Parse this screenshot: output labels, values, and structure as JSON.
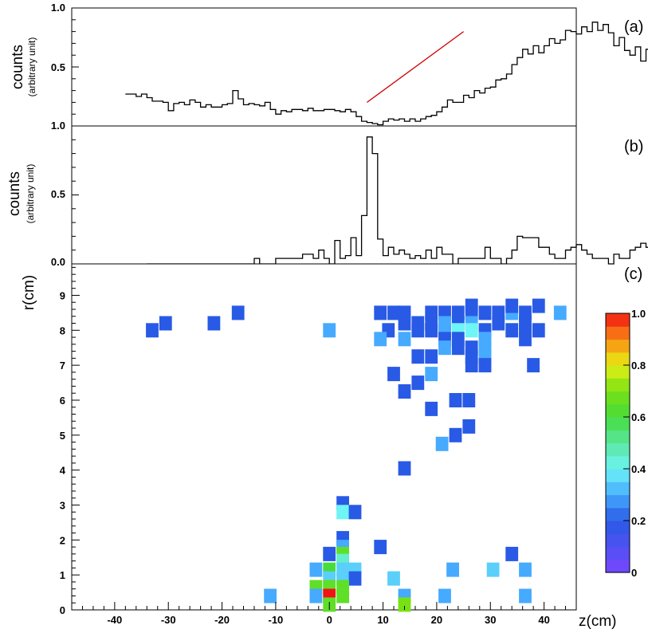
{
  "chart_data": [
    {
      "panel": "a",
      "type": "line",
      "label": "(a)",
      "ylabel": "counts",
      "ylabel_sub": "(arbitrary unit)",
      "ytick_labels": [
        "1.0",
        "0.5"
      ],
      "ylim": [
        0,
        1
      ],
      "xlim": [
        -48,
        46
      ],
      "x_start": -38,
      "bin_width": 1,
      "values": [
        0.27,
        0.27,
        0.25,
        0.27,
        0.24,
        0.21,
        0.21,
        0.2,
        0.13,
        0.19,
        0.2,
        0.18,
        0.22,
        0.2,
        0.16,
        0.18,
        0.16,
        0.16,
        0.18,
        0.19,
        0.3,
        0.23,
        0.18,
        0.19,
        0.18,
        0.17,
        0.2,
        0.14,
        0.1,
        0.13,
        0.12,
        0.14,
        0.14,
        0.13,
        0.15,
        0.13,
        0.13,
        0.14,
        0.14,
        0.13,
        0.12,
        0.14,
        0.12,
        0.08,
        0.04,
        0.03,
        0.02,
        0.01,
        0.04,
        0.06,
        0.05,
        0.06,
        0.04,
        0.06,
        0.04,
        0.06,
        0.08,
        0.09,
        0.12,
        0.16,
        0.22,
        0.2,
        0.2,
        0.26,
        0.24,
        0.3,
        0.28,
        0.32,
        0.33,
        0.39,
        0.4,
        0.44,
        0.52,
        0.58,
        0.65,
        0.61,
        0.68,
        0.62,
        0.68,
        0.74,
        0.7,
        0.73,
        0.81,
        0.8,
        0.78,
        0.84,
        0.8,
        0.88,
        0.81,
        0.86,
        0.79,
        0.68,
        0.75,
        0.64,
        0.6,
        0.67,
        0.55,
        0.65,
        0.61,
        0.6,
        0.48,
        0.51,
        0.5,
        0.45,
        0.43,
        0.53,
        0.42,
        0.45,
        0.4,
        0.4
      ],
      "fit_line": {
        "x": [
          7,
          25
        ],
        "y": [
          0.2,
          0.8
        ],
        "color": "#cc0000"
      }
    },
    {
      "panel": "b",
      "type": "line",
      "label": "(b)",
      "ylabel": "counts",
      "ylabel_sub": "(arbitrary unit)",
      "ytick_labels": [
        "1.0",
        "0.5",
        "0.0"
      ],
      "ylim": [
        0,
        1
      ],
      "xlim": [
        -48,
        46
      ],
      "x_start": -34,
      "bin_width": 1,
      "values": [
        0,
        0,
        0,
        0,
        0,
        0,
        0,
        0,
        0,
        0,
        0,
        0,
        0,
        0,
        0,
        0,
        0,
        0,
        0,
        0,
        0.04,
        0,
        0,
        0,
        0.04,
        0.04,
        0.04,
        0.04,
        0.04,
        0.07,
        0.07,
        0.04,
        0.1,
        0.04,
        0,
        0.17,
        0.04,
        0.06,
        0.19,
        0.06,
        0.35,
        0.92,
        0.8,
        0.18,
        0.06,
        0.12,
        0.07,
        0.1,
        0.07,
        0.04,
        0.06,
        0.04,
        0.1,
        0.04,
        0.12,
        0.07,
        0.07,
        0,
        0.04,
        0.04,
        0.04,
        0.04,
        0.04,
        0.12,
        0.04,
        0.04,
        0,
        0.04,
        0.1,
        0.2,
        0.19,
        0.19,
        0.19,
        0.12,
        0.12,
        0.07,
        0.04,
        0.04,
        0.1,
        0.12,
        0.14,
        0.1,
        0.07,
        0.04,
        0.04,
        0.04,
        0,
        0.07,
        0.04,
        0.04,
        0.1,
        0.12,
        0.15,
        0.12,
        0.12,
        0.14,
        0.1,
        0.07,
        0.04,
        0.04,
        0.04,
        0.1,
        0.04,
        0.04
      ]
    },
    {
      "panel": "c",
      "type": "heatmap",
      "label": "(c)",
      "ylabel": "r(cm)",
      "xlabel": "z(cm)",
      "xlim": [
        -48,
        46
      ],
      "ylim": [
        0,
        9.9
      ],
      "xticks": [
        -40,
        -30,
        -20,
        -10,
        0,
        10,
        20,
        30,
        40
      ],
      "yticks": [
        0,
        1,
        2,
        3,
        4,
        5,
        6,
        7,
        8,
        9
      ],
      "cell_size": {
        "dz": 2.35,
        "dr": 0.41
      },
      "colorbar": {
        "range": [
          0,
          1
        ],
        "ticks": [
          0,
          0.2,
          0.4,
          0.6,
          0.8,
          1.0
        ],
        "tick_labels": [
          "0",
          "0.2",
          "0.4",
          "0.6",
          "0.8",
          "1.0"
        ]
      },
      "cells": [
        {
          "z": -33,
          "r": 8.0,
          "v": 0.2
        },
        {
          "z": -30.5,
          "r": 8.2,
          "v": 0.2
        },
        {
          "z": -21.5,
          "r": 8.2,
          "v": 0.2
        },
        {
          "z": -17,
          "r": 8.5,
          "v": 0.2
        },
        {
          "z": 0,
          "r": 8.0,
          "v": 0.3
        },
        {
          "z": 9.5,
          "r": 8.5,
          "v": 0.2
        },
        {
          "z": 12,
          "r": 8.5,
          "v": 0.2
        },
        {
          "z": 14,
          "r": 8.5,
          "v": 0.2
        },
        {
          "z": 19,
          "r": 8.5,
          "v": 0.2
        },
        {
          "z": 21.5,
          "r": 8.5,
          "v": 0.2
        },
        {
          "z": 24,
          "r": 8.5,
          "v": 0.2
        },
        {
          "z": 26.5,
          "r": 8.5,
          "v": 0.2
        },
        {
          "z": 26.5,
          "r": 8.7,
          "v": 0.2
        },
        {
          "z": 29,
          "r": 8.5,
          "v": 0.2
        },
        {
          "z": 31.5,
          "r": 8.5,
          "v": 0.2
        },
        {
          "z": 34,
          "r": 8.5,
          "v": 0.3
        },
        {
          "z": 36.5,
          "r": 8.5,
          "v": 0.2
        },
        {
          "z": 34,
          "r": 8.7,
          "v": 0.2
        },
        {
          "z": 39,
          "r": 8.7,
          "v": 0.2
        },
        {
          "z": 43,
          "r": 8.5,
          "v": 0.3
        },
        {
          "z": 14,
          "r": 8.2,
          "v": 0.2
        },
        {
          "z": 16.5,
          "r": 8.2,
          "v": 0.2
        },
        {
          "z": 19,
          "r": 8.2,
          "v": 0.2
        },
        {
          "z": 21.5,
          "r": 8.2,
          "v": 0.3
        },
        {
          "z": 24,
          "r": 8.2,
          "v": 0.2
        },
        {
          "z": 26.5,
          "r": 8.2,
          "v": 0.3
        },
        {
          "z": 31.5,
          "r": 8.2,
          "v": 0.2
        },
        {
          "z": 36.5,
          "r": 8.2,
          "v": 0.2
        },
        {
          "z": 11,
          "r": 8.0,
          "v": 0.2
        },
        {
          "z": 16.5,
          "r": 8.0,
          "v": 0.2
        },
        {
          "z": 19,
          "r": 8.0,
          "v": 0.2
        },
        {
          "z": 21.5,
          "r": 8.0,
          "v": 0.3
        },
        {
          "z": 24,
          "r": 8.0,
          "v": 0.4
        },
        {
          "z": 26.5,
          "r": 8.0,
          "v": 0.4
        },
        {
          "z": 29,
          "r": 8.0,
          "v": 0.2
        },
        {
          "z": 34,
          "r": 8.0,
          "v": 0.2
        },
        {
          "z": 36.5,
          "r": 8.0,
          "v": 0.2
        },
        {
          "z": 39,
          "r": 8.0,
          "v": 0.2
        },
        {
          "z": 9.5,
          "r": 7.75,
          "v": 0.3
        },
        {
          "z": 14,
          "r": 7.75,
          "v": 0.3
        },
        {
          "z": 21.5,
          "r": 7.75,
          "v": 0.2
        },
        {
          "z": 24,
          "r": 7.75,
          "v": 0.2
        },
        {
          "z": 29,
          "r": 7.75,
          "v": 0.3
        },
        {
          "z": 36.5,
          "r": 7.75,
          "v": 0.2
        },
        {
          "z": 21.5,
          "r": 7.5,
          "v": 0.3
        },
        {
          "z": 24,
          "r": 7.5,
          "v": 0.2
        },
        {
          "z": 26.5,
          "r": 7.5,
          "v": 0.2
        },
        {
          "z": 29,
          "r": 7.5,
          "v": 0.3
        },
        {
          "z": 16.5,
          "r": 7.25,
          "v": 0.2
        },
        {
          "z": 19,
          "r": 7.25,
          "v": 0.2
        },
        {
          "z": 26.5,
          "r": 7.25,
          "v": 0.2
        },
        {
          "z": 29,
          "r": 7.25,
          "v": 0.3
        },
        {
          "z": 26.5,
          "r": 7.0,
          "v": 0.2
        },
        {
          "z": 29,
          "r": 7.0,
          "v": 0.2
        },
        {
          "z": 38,
          "r": 7.0,
          "v": 0.2
        },
        {
          "z": 12,
          "r": 6.75,
          "v": 0.2
        },
        {
          "z": 19,
          "r": 6.75,
          "v": 0.3
        },
        {
          "z": 16.5,
          "r": 6.5,
          "v": 0.2
        },
        {
          "z": 14,
          "r": 6.25,
          "v": 0.2
        },
        {
          "z": 23.5,
          "r": 6.0,
          "v": 0.2
        },
        {
          "z": 26,
          "r": 6.0,
          "v": 0.2
        },
        {
          "z": 19,
          "r": 5.75,
          "v": 0.2
        },
        {
          "z": 26,
          "r": 5.25,
          "v": 0.2
        },
        {
          "z": 23.5,
          "r": 5.0,
          "v": 0.2
        },
        {
          "z": 21,
          "r": 4.75,
          "v": 0.3
        },
        {
          "z": 14,
          "r": 4.05,
          "v": 0.2
        },
        {
          "z": 2.5,
          "r": 3.05,
          "v": 0.2
        },
        {
          "z": 2.5,
          "r": 2.8,
          "v": 0.4
        },
        {
          "z": 4.8,
          "r": 2.8,
          "v": 0.2
        },
        {
          "z": 2.5,
          "r": 2.05,
          "v": 0.2
        },
        {
          "z": 2.5,
          "r": 1.8,
          "v": 0.3
        },
        {
          "z": 9.5,
          "r": 1.8,
          "v": 0.2
        },
        {
          "z": 0,
          "r": 1.6,
          "v": 0.2
        },
        {
          "z": 2.5,
          "r": 1.6,
          "v": 0.65
        },
        {
          "z": 34,
          "r": 1.6,
          "v": 0.2
        },
        {
          "z": 2.5,
          "r": 1.4,
          "v": 0.45
        },
        {
          "z": -2.5,
          "r": 1.15,
          "v": 0.3
        },
        {
          "z": 0,
          "r": 1.15,
          "v": 0.6
        },
        {
          "z": 2.5,
          "r": 1.15,
          "v": 0.35
        },
        {
          "z": 4.8,
          "r": 1.15,
          "v": 0.35
        },
        {
          "z": 23,
          "r": 1.15,
          "v": 0.3
        },
        {
          "z": 30.5,
          "r": 1.15,
          "v": 0.35
        },
        {
          "z": 36.5,
          "r": 1.15,
          "v": 0.3
        },
        {
          "z": 0,
          "r": 0.9,
          "v": 0.35
        },
        {
          "z": 2.5,
          "r": 0.9,
          "v": 0.35
        },
        {
          "z": 4.8,
          "r": 0.9,
          "v": 0.2
        },
        {
          "z": 12,
          "r": 0.9,
          "v": 0.35
        },
        {
          "z": -2.5,
          "r": 0.65,
          "v": 0.65
        },
        {
          "z": 0,
          "r": 0.65,
          "v": 0.65
        },
        {
          "z": 2.5,
          "r": 0.65,
          "v": 0.65
        },
        {
          "z": -11,
          "r": 0.4,
          "v": 0.3
        },
        {
          "z": -2.5,
          "r": 0.4,
          "v": 0.3
        },
        {
          "z": 0,
          "r": 0.4,
          "v": 1.0
        },
        {
          "z": 2.5,
          "r": 0.4,
          "v": 0.65
        },
        {
          "z": 14,
          "r": 0.4,
          "v": 0.3
        },
        {
          "z": 21.5,
          "r": 0.4,
          "v": 0.3
        },
        {
          "z": 36.5,
          "r": 0.4,
          "v": 0.3
        },
        {
          "z": 0,
          "r": 0.15,
          "v": 0.65
        },
        {
          "z": 14,
          "r": 0.15,
          "v": 0.7
        }
      ]
    }
  ]
}
